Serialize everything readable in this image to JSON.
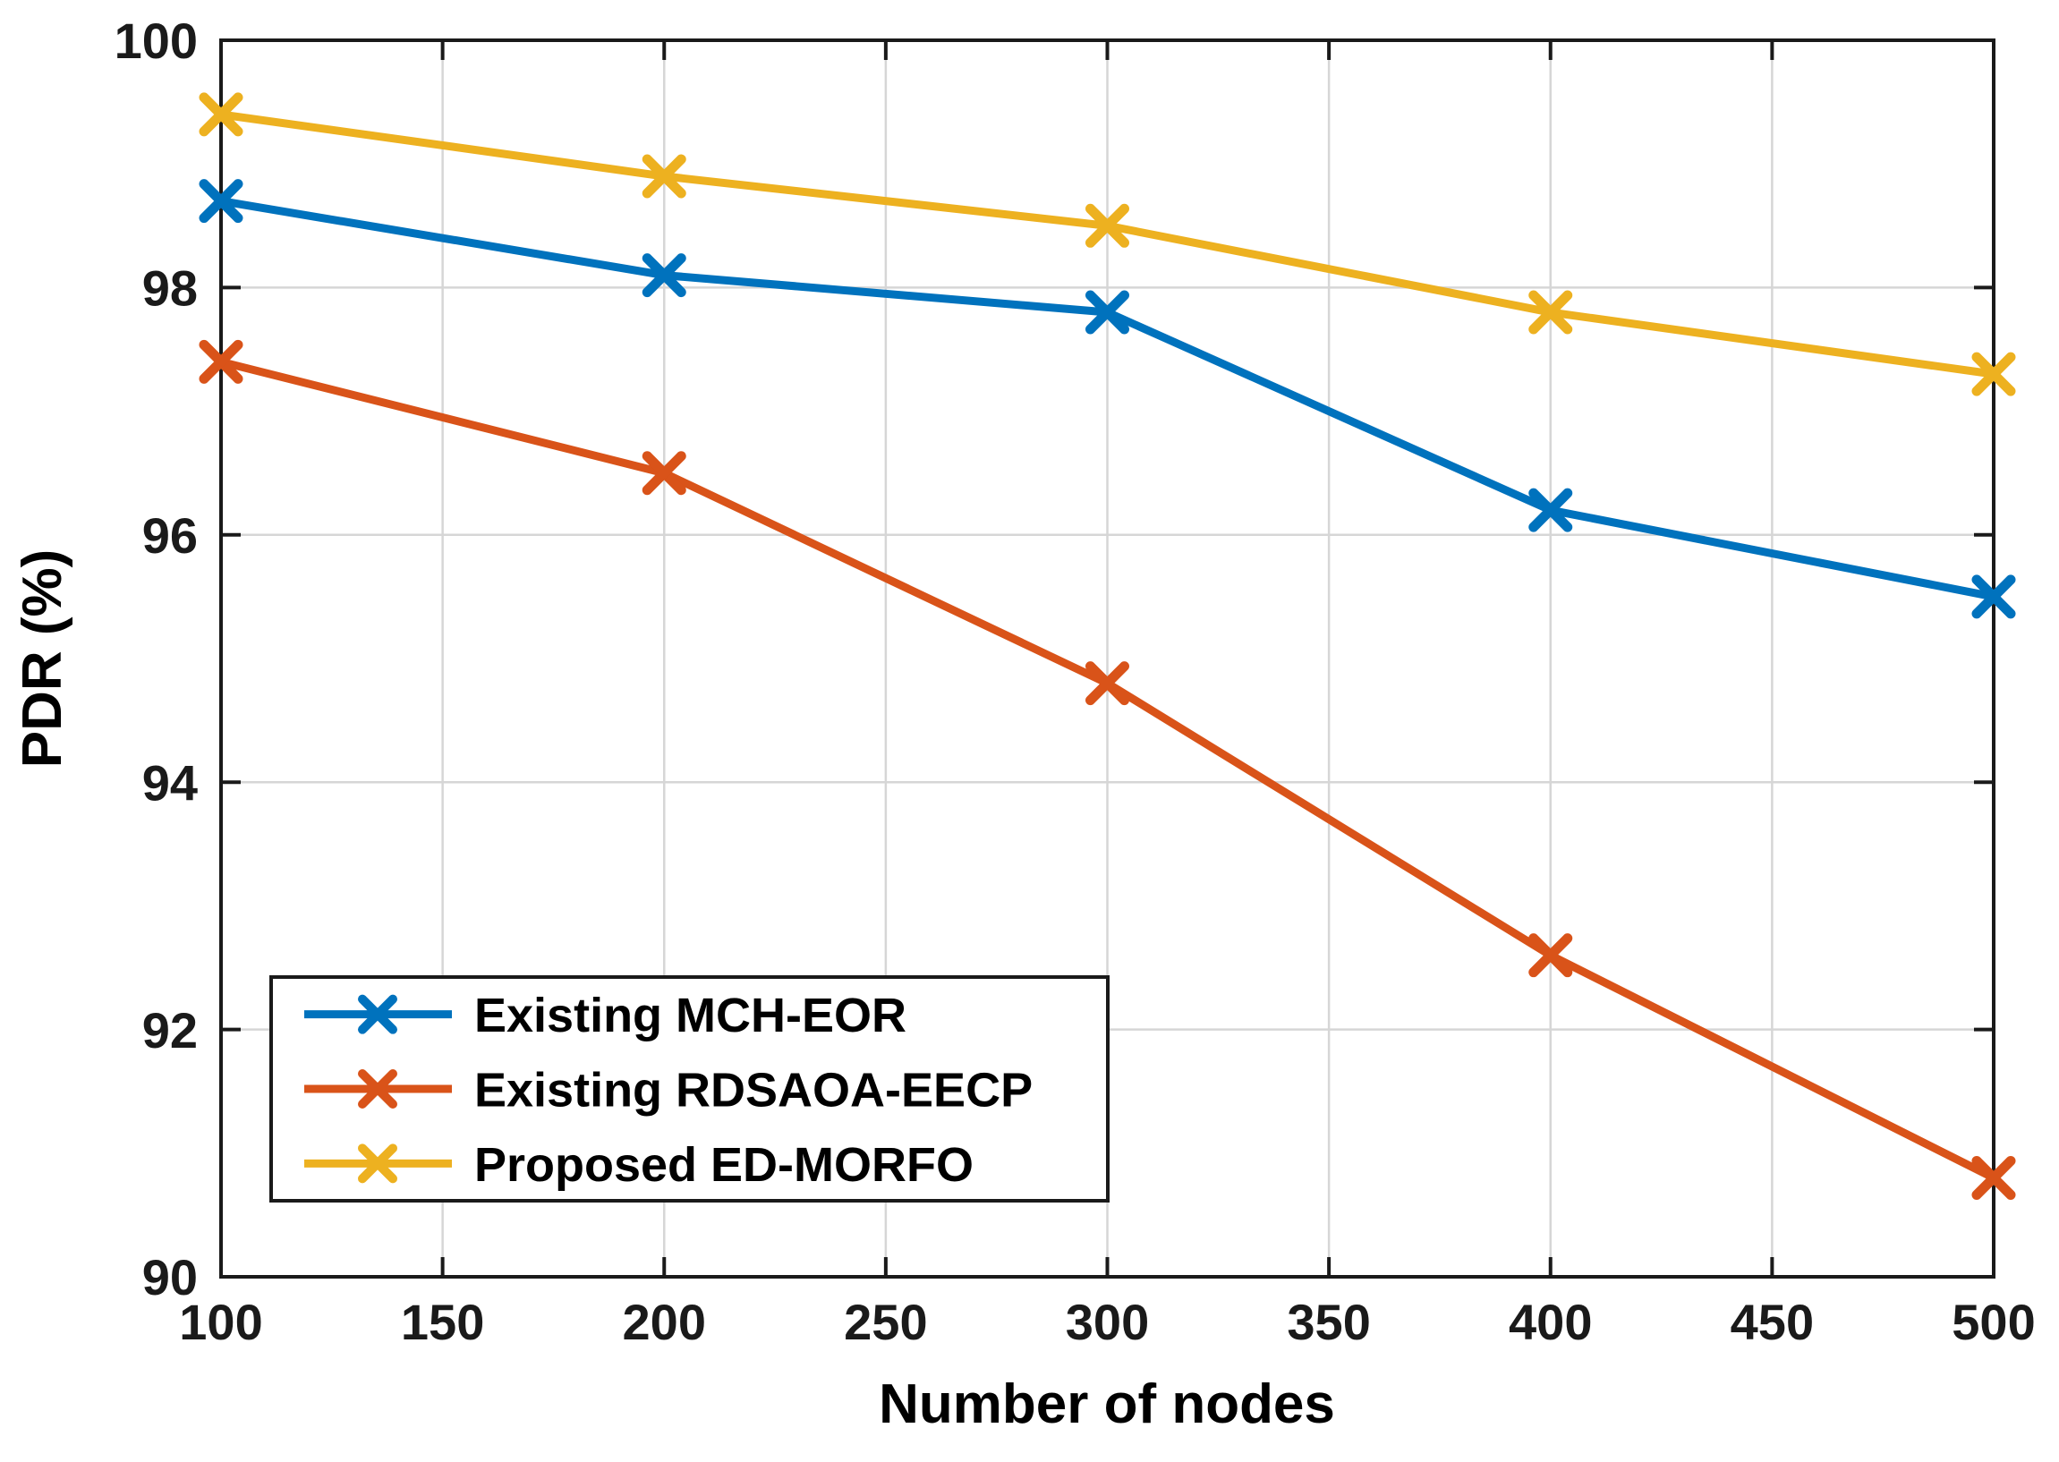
{
  "figure": {
    "background": "#ffffff",
    "frame_color": "#1a1a1a",
    "grid_color": "#d6d6d6",
    "tick_text_color": "#1a1a1a",
    "label_text_color": "#000000"
  },
  "chart_data": {
    "type": "line",
    "title": "",
    "xlabel": "Number of nodes",
    "ylabel": "PDR (%)",
    "xlim": [
      100,
      500
    ],
    "ylim": [
      90,
      100
    ],
    "x_ticks": [
      100,
      150,
      200,
      250,
      300,
      350,
      400,
      450,
      500
    ],
    "y_ticks": [
      90,
      92,
      94,
      96,
      98,
      100
    ],
    "grid": true,
    "legend_position": "bottom-left",
    "marker": "x",
    "x": [
      100,
      200,
      300,
      400,
      500
    ],
    "series": [
      {
        "name": "Existing MCH-EOR",
        "color": "#0072BD",
        "values": [
          98.7,
          98.1,
          97.8,
          96.2,
          95.5
        ]
      },
      {
        "name": "Existing RDSAOA-EECP",
        "color": "#D95319",
        "values": [
          97.4,
          96.5,
          94.8,
          92.6,
          90.8
        ]
      },
      {
        "name": "Proposed ED-MORFO",
        "color": "#EDB120",
        "values": [
          99.4,
          98.9,
          98.5,
          97.8,
          97.3
        ]
      }
    ]
  }
}
